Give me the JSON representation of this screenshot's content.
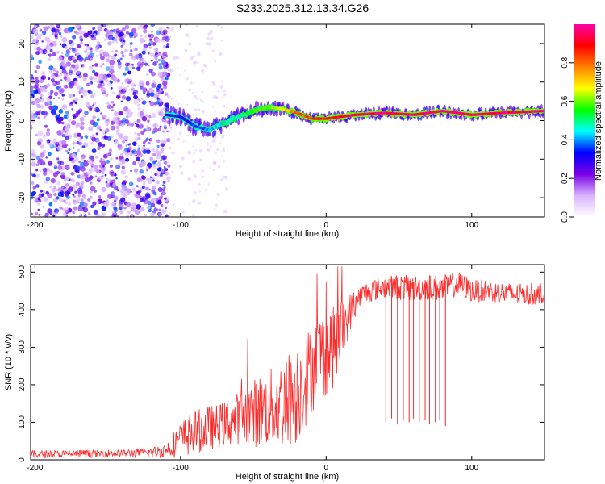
{
  "title": "S233.2025.312.13.34.G26",
  "chart_data": [
    {
      "type": "heatmap",
      "name": "spectrogram",
      "xlabel": "Height of straight line (km)",
      "ylabel": "Frequency (Hz)",
      "xlim": [
        -203,
        150
      ],
      "ylim": [
        -25,
        25
      ],
      "xticks": [
        -200,
        -100,
        0,
        100
      ],
      "yticks": [
        -20,
        -10,
        0,
        10,
        20
      ],
      "colorbar": {
        "label": "Normalized spectral amplitude",
        "range": [
          0,
          1
        ],
        "ticks": [
          "0.0",
          "0.2",
          "0.4",
          "0.6",
          "0.8"
        ],
        "tick_values": [
          0.0,
          0.2,
          0.4,
          0.6,
          0.8
        ],
        "colors": [
          "#ffffff",
          "#d9b3ff",
          "#7a00e6",
          "#0000ff",
          "#00ffff",
          "#00ff00",
          "#ffff00",
          "#ff8000",
          "#ff0000",
          "#ff00aa"
        ]
      },
      "noise_region_x": [
        -203,
        -108
      ],
      "ridge": {
        "x": [
          -110,
          -100,
          -90,
          -80,
          -70,
          -60,
          -50,
          -40,
          -30,
          -20,
          -10,
          0,
          10,
          20,
          40,
          60,
          80,
          100,
          120,
          150
        ],
        "freq": [
          1.5,
          1.0,
          -1.5,
          -2.5,
          -0.5,
          1.0,
          2.5,
          3.5,
          3.0,
          2.0,
          0.5,
          0.5,
          1.0,
          1.5,
          2.0,
          1.5,
          2.5,
          1.5,
          2.0,
          2.5
        ],
        "amp": [
          0.3,
          0.35,
          0.35,
          0.4,
          0.45,
          0.5,
          0.55,
          0.6,
          0.7,
          0.8,
          0.85,
          0.9,
          0.92,
          0.95,
          0.97,
          0.95,
          0.97,
          0.96,
          0.95,
          0.97
        ]
      }
    },
    {
      "type": "line",
      "name": "snr",
      "xlabel": "Height of straight line (km)",
      "ylabel": "SNR (10 * v/v)",
      "xlim": [
        -203,
        150
      ],
      "ylim": [
        0,
        520
      ],
      "xticks": [
        -200,
        -100,
        0,
        100
      ],
      "yticks": [
        0,
        100,
        200,
        300,
        400,
        500
      ],
      "color": "#ff2a2a",
      "series": [
        {
          "name": "SNR",
          "x": [
            -203,
            -190,
            -180,
            -170,
            -160,
            -150,
            -140,
            -130,
            -120,
            -110,
            -105,
            -100,
            -95,
            -90,
            -85,
            -80,
            -75,
            -70,
            -65,
            -60,
            -55,
            -50,
            -45,
            -40,
            -35,
            -30,
            -25,
            -20,
            -15,
            -10,
            -5,
            0,
            5,
            10,
            15,
            20,
            25,
            30,
            40,
            50,
            60,
            70,
            80,
            90,
            100,
            110,
            120,
            130,
            140,
            150
          ],
          "values": [
            15,
            15,
            16,
            17,
            16,
            18,
            18,
            18,
            20,
            25,
            40,
            55,
            65,
            75,
            80,
            85,
            90,
            95,
            105,
            110,
            120,
            125,
            130,
            135,
            145,
            150,
            165,
            180,
            210,
            240,
            275,
            290,
            300,
            330,
            380,
            420,
            440,
            450,
            460,
            460,
            455,
            460,
            455,
            470,
            450,
            450,
            445,
            440,
            440,
            445
          ],
          "spread": [
            10,
            10,
            10,
            10,
            10,
            10,
            10,
            12,
            14,
            20,
            35,
            45,
            55,
            55,
            60,
            60,
            60,
            60,
            70,
            70,
            80,
            90,
            100,
            100,
            110,
            120,
            130,
            140,
            130,
            120,
            120,
            120,
            110,
            100,
            60,
            40,
            30,
            30,
            30,
            35,
            35,
            35,
            35,
            35,
            30,
            30,
            30,
            30,
            30,
            30
          ]
        }
      ],
      "dropouts": {
        "x": [
          41,
          45,
          49,
          53,
          57,
          60,
          64,
          68,
          71,
          75,
          78,
          82
        ],
        "low": [
          100,
          110,
          95,
          105,
          100,
          110,
          100,
          105,
          95,
          100,
          105,
          90
        ]
      }
    }
  ]
}
